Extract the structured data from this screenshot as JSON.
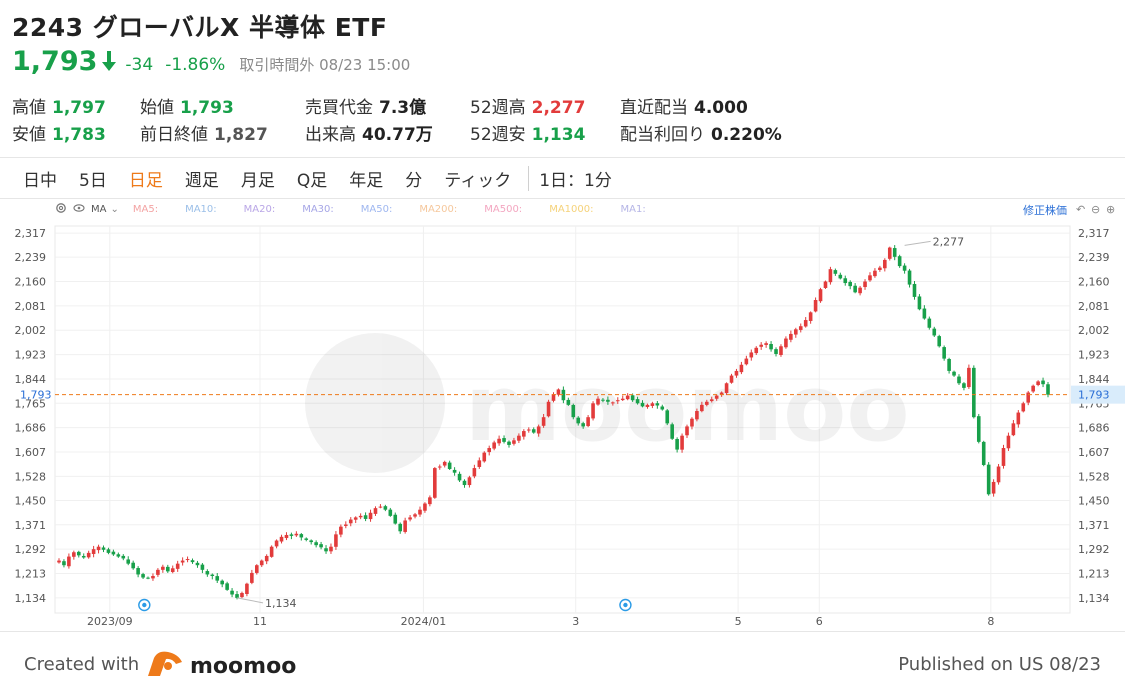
{
  "header": {
    "title": "2243 グローバルX 半導体 ETF",
    "price": "1,793",
    "change": "-34",
    "change_pct": "-1.86%",
    "status": "取引時間外 08/23 15:00"
  },
  "stats": {
    "high": {
      "label": "高値",
      "value": "1,797"
    },
    "open": {
      "label": "始値",
      "value": "1,793"
    },
    "turnover": {
      "label": "売買代金",
      "value": "7.3億"
    },
    "w52_high": {
      "label": "52週高",
      "value": "2,277"
    },
    "last_div": {
      "label": "直近配当",
      "value": "4.000"
    },
    "low": {
      "label": "安値",
      "value": "1,783"
    },
    "prev_close": {
      "label": "前日終値",
      "value": "1,827"
    },
    "volume": {
      "label": "出来高",
      "value": "40.77万"
    },
    "w52_low": {
      "label": "52週安",
      "value": "1,134"
    },
    "div_yield": {
      "label": "配当利回り",
      "value": "0.220%"
    }
  },
  "tabs": [
    "日中",
    "5日",
    "日足",
    "週足",
    "月足",
    "Q足",
    "年足",
    "分",
    "ティック"
  ],
  "active_tab": "日足",
  "period_label": "1日：1分",
  "toolbar": {
    "ma_label": "MA",
    "ma_items": [
      "MA5:",
      "MA10:",
      "MA20:",
      "MA30:",
      "MA50:",
      "MA200:",
      "MA500:",
      "MA1000:",
      "MA1:"
    ],
    "adjusted_label": "修正株価"
  },
  "footer": {
    "created_label": "Created with",
    "brand": "moomoo",
    "published": "Published on US 08/23"
  },
  "colors": {
    "up": "#e23b3b",
    "down": "#18a04a",
    "accent": "#ee7a1a",
    "link": "#2b6fd6"
  },
  "chart_data": {
    "type": "candlestick",
    "y_ticks": [
      1134,
      1213,
      1292,
      1371,
      1450,
      1528,
      1607,
      1686,
      1765,
      1844,
      1923,
      2002,
      2081,
      2160,
      2239,
      2317
    ],
    "y_tick_labels": [
      "1,134",
      "1,213",
      "1,292",
      "1,371",
      "1,450",
      "1,528",
      "1,607",
      "1,686",
      "1,765",
      "1,844",
      "1,923",
      "2,002",
      "2,081",
      "2,160",
      "2,239",
      "2,317"
    ],
    "ylim": [
      1085,
      2340
    ],
    "x_labels": [
      "2023/09",
      "11",
      "2024/01",
      "3",
      "5",
      "6",
      "8"
    ],
    "current_price": 1793,
    "current_price_label": "1,793",
    "annotations": [
      {
        "text": "2,277",
        "value": 2277
      },
      {
        "text": "1,134",
        "value": 1134
      }
    ],
    "watermark": "moomoo",
    "series": [
      {
        "name": "close",
        "values": [
          1255,
          1240,
          1268,
          1282,
          1272,
          1265,
          1280,
          1292,
          1300,
          1290,
          1280,
          1275,
          1268,
          1262,
          1245,
          1230,
          1210,
          1200,
          1198,
          1205,
          1225,
          1235,
          1220,
          1230,
          1245,
          1255,
          1260,
          1250,
          1240,
          1225,
          1210,
          1205,
          1190,
          1178,
          1160,
          1145,
          1134,
          1150,
          1180,
          1215,
          1240,
          1255,
          1270,
          1300,
          1320,
          1332,
          1338,
          1335,
          1342,
          1330,
          1322,
          1315,
          1305,
          1298,
          1285,
          1300,
          1340,
          1365,
          1372,
          1388,
          1395,
          1400,
          1390,
          1410,
          1425,
          1430,
          1420,
          1400,
          1375,
          1350,
          1385,
          1395,
          1405,
          1420,
          1440,
          1460,
          1555,
          1560,
          1575,
          1552,
          1540,
          1515,
          1500,
          1525,
          1555,
          1580,
          1605,
          1620,
          1638,
          1650,
          1640,
          1630,
          1645,
          1660,
          1675,
          1680,
          1670,
          1690,
          1720,
          1770,
          1795,
          1810,
          1775,
          1760,
          1720,
          1700,
          1690,
          1720,
          1765,
          1780,
          1775,
          1770,
          1768,
          1775,
          1780,
          1790,
          1775,
          1765,
          1755,
          1760,
          1765,
          1758,
          1745,
          1700,
          1650,
          1615,
          1660,
          1690,
          1715,
          1740,
          1760,
          1770,
          1778,
          1790,
          1800,
          1830,
          1855,
          1870,
          1890,
          1910,
          1930,
          1945,
          1955,
          1960,
          1940,
          1925,
          1950,
          1975,
          1990,
          2005,
          2015,
          2035,
          2060,
          2100,
          2135,
          2160,
          2200,
          2185,
          2170,
          2155,
          2145,
          2125,
          2140,
          2160,
          2180,
          2195,
          2205,
          2230,
          2270,
          2240,
          2210,
          2195,
          2150,
          2110,
          2070,
          2040,
          2010,
          1985,
          1950,
          1910,
          1870,
          1855,
          1830,
          1815,
          1880,
          1720,
          1640,
          1565,
          1470,
          1510,
          1560,
          1620,
          1660,
          1700,
          1735,
          1765,
          1800,
          1822,
          1836,
          1827,
          1793
        ]
      }
    ]
  }
}
